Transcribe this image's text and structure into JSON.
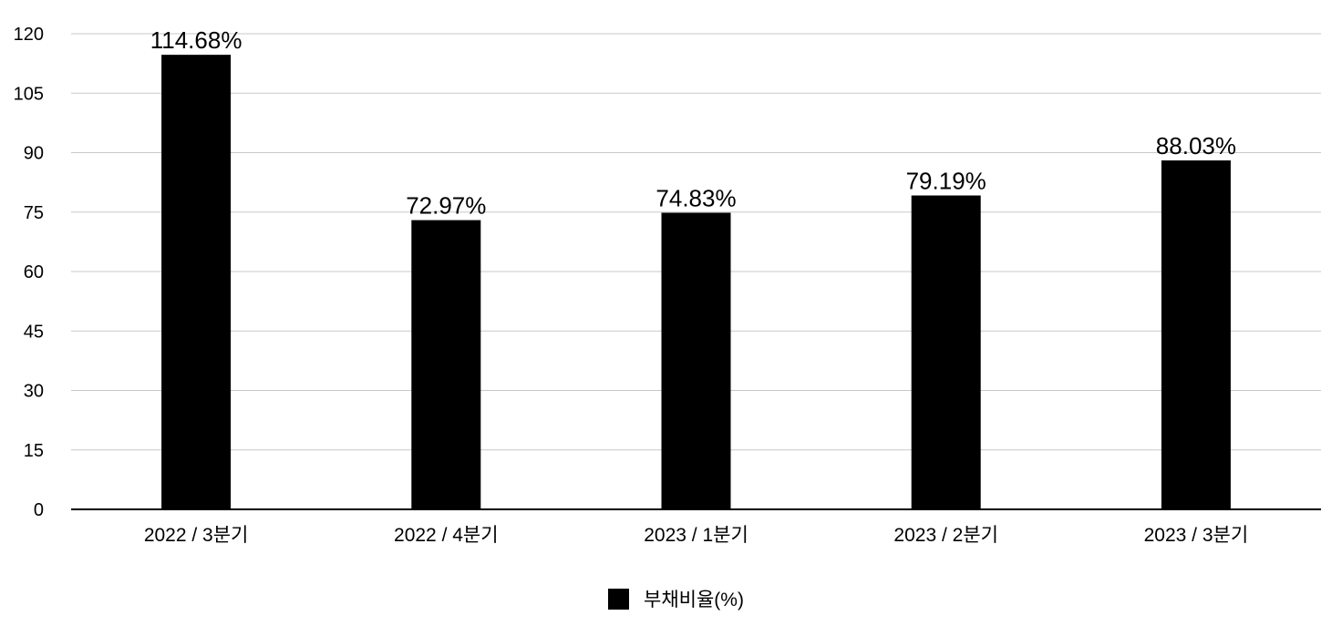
{
  "chart_data": {
    "type": "bar",
    "title": "",
    "xlabel": "",
    "ylabel": "",
    "categories": [
      "2022 / 3분기",
      "2022 / 4분기",
      "2023 / 1분기",
      "2023 / 2분기",
      "2023 / 3분기"
    ],
    "series": [
      {
        "name": "부채비율(%)",
        "values": [
          114.68,
          72.97,
          74.83,
          79.19,
          88.03
        ],
        "data_labels": [
          "114.68%",
          "72.97%",
          "74.83%",
          "79.19%",
          "88.03%"
        ],
        "color": "#000000"
      }
    ],
    "ylim": [
      0,
      120
    ],
    "yticks": [
      0,
      15,
      30,
      45,
      60,
      75,
      90,
      105,
      120
    ],
    "grid": true,
    "legend_position": "bottom",
    "colors": {
      "bar": "#000000",
      "grid": "#c8c8c8",
      "axis": "#000000",
      "text": "#000000"
    }
  }
}
